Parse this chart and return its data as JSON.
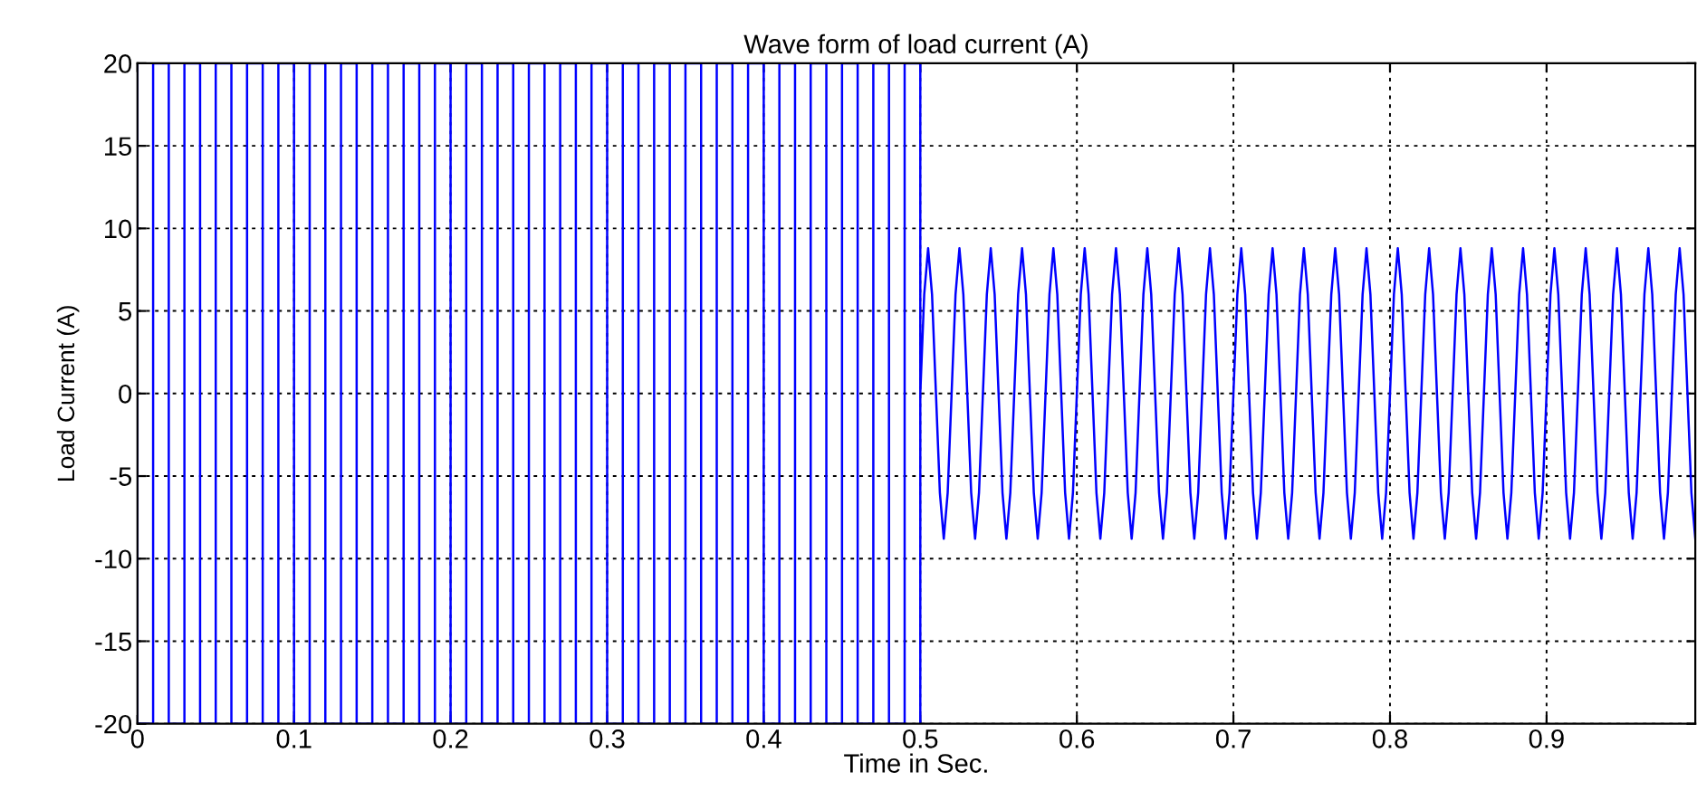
{
  "chart_data": {
    "type": "line",
    "title": "Wave form of load current (A)",
    "xlabel": "Time in Sec.",
    "ylabel": "Load Current (A)",
    "xlim": [
      0,
      0.995
    ],
    "ylim": [
      -20,
      20
    ],
    "xticks": [
      0,
      0.1,
      0.2,
      0.3,
      0.4,
      0.5,
      0.6,
      0.7,
      0.8,
      0.9
    ],
    "yticks": [
      -20,
      -15,
      -10,
      -5,
      0,
      5,
      10,
      15,
      20
    ],
    "grid": true,
    "marker": "none",
    "line_style": "solid",
    "series": [
      {
        "color": "#0000ff",
        "x": [
          0,
          0,
          0.01,
          0.01,
          0.02,
          0.02,
          0.03,
          0.03,
          0.04,
          0.04,
          0.05,
          0.05,
          0.06,
          0.06,
          0.07,
          0.07,
          0.08,
          0.08,
          0.09,
          0.09,
          0.1,
          0.1,
          0.11,
          0.11,
          0.12,
          0.12,
          0.13,
          0.13,
          0.14,
          0.14,
          0.15,
          0.15,
          0.16,
          0.16,
          0.17,
          0.17,
          0.18,
          0.18,
          0.19,
          0.19,
          0.2,
          0.2,
          0.21,
          0.21,
          0.22,
          0.22,
          0.23,
          0.23,
          0.24,
          0.24,
          0.25,
          0.25,
          0.26,
          0.26,
          0.27,
          0.27,
          0.28,
          0.28,
          0.29,
          0.29,
          0.3,
          0.3,
          0.31,
          0.31,
          0.32,
          0.32,
          0.33,
          0.33,
          0.34,
          0.34,
          0.35,
          0.35,
          0.36,
          0.36,
          0.37,
          0.37,
          0.38,
          0.38,
          0.39,
          0.39,
          0.4,
          0.4,
          0.41,
          0.41,
          0.42,
          0.42,
          0.43,
          0.43,
          0.44,
          0.44,
          0.45,
          0.45,
          0.46,
          0.46,
          0.47,
          0.47,
          0.48,
          0.48,
          0.49,
          0.49,
          0.5,
          0.5,
          0.5,
          0.5025,
          0.505,
          0.5075,
          0.51,
          0.5125,
          0.515,
          0.5175,
          0.52,
          0.5225,
          0.525,
          0.5275,
          0.53,
          0.5325,
          0.535,
          0.5375,
          0.54,
          0.5425,
          0.545,
          0.5475,
          0.55,
          0.5525,
          0.555,
          0.5575,
          0.56,
          0.5625,
          0.565,
          0.5675,
          0.57,
          0.5725,
          0.575,
          0.5775,
          0.58,
          0.5825,
          0.585,
          0.5875,
          0.59,
          0.5925,
          0.595,
          0.5975,
          0.6,
          0.6025,
          0.605,
          0.6075,
          0.61,
          0.6125,
          0.615,
          0.6175,
          0.62,
          0.6225,
          0.625,
          0.6275,
          0.63,
          0.6325,
          0.635,
          0.6375,
          0.64,
          0.6425,
          0.645,
          0.6475,
          0.65,
          0.6525,
          0.655,
          0.6575,
          0.66,
          0.6625,
          0.665,
          0.6675,
          0.67,
          0.6725,
          0.675,
          0.6775,
          0.68,
          0.6825,
          0.685,
          0.6875,
          0.69,
          0.6925,
          0.695,
          0.6975,
          0.7,
          0.7025,
          0.705,
          0.7075,
          0.71,
          0.7125,
          0.715,
          0.7175,
          0.72,
          0.7225,
          0.725,
          0.7275,
          0.73,
          0.7325,
          0.735,
          0.7375,
          0.74,
          0.7425,
          0.745,
          0.7475,
          0.75,
          0.7525,
          0.755,
          0.7575,
          0.76,
          0.7625,
          0.765,
          0.7675,
          0.77,
          0.7725,
          0.775,
          0.7775,
          0.78,
          0.7825,
          0.785,
          0.7875,
          0.79,
          0.7925,
          0.795,
          0.7975,
          0.8,
          0.8025,
          0.805,
          0.8075,
          0.81,
          0.8125,
          0.815,
          0.8175,
          0.82,
          0.8225,
          0.825,
          0.8275,
          0.83,
          0.8325,
          0.835,
          0.8375,
          0.84,
          0.8425,
          0.845,
          0.8475,
          0.85,
          0.8525,
          0.855,
          0.8575,
          0.86,
          0.8625,
          0.865,
          0.8675,
          0.87,
          0.8725,
          0.875,
          0.8775,
          0.88,
          0.8825,
          0.885,
          0.8875,
          0.89,
          0.8925,
          0.895,
          0.8975,
          0.9,
          0.9025,
          0.905,
          0.9075,
          0.91,
          0.9125,
          0.915,
          0.9175,
          0.92,
          0.9225,
          0.925,
          0.9275,
          0.93,
          0.9325,
          0.935,
          0.9375,
          0.94,
          0.9425,
          0.945,
          0.9475,
          0.95,
          0.9525,
          0.955,
          0.9575,
          0.96,
          0.9625,
          0.965,
          0.9675,
          0.97,
          0.9725,
          0.975,
          0.9775,
          0.98,
          0.9825,
          0.985,
          0.9875,
          0.99,
          0.9925,
          0.995
        ],
        "values": [
          20,
          -20,
          -20,
          20,
          20,
          -20,
          -20,
          20,
          20,
          -20,
          -20,
          20,
          20,
          -20,
          -20,
          20,
          20,
          -20,
          -20,
          20,
          20,
          -20,
          -20,
          20,
          20,
          -20,
          -20,
          20,
          20,
          -20,
          -20,
          20,
          20,
          -20,
          -20,
          20,
          20,
          -20,
          -20,
          20,
          20,
          -20,
          -20,
          20,
          20,
          -20,
          -20,
          20,
          20,
          -20,
          -20,
          20,
          20,
          -20,
          -20,
          20,
          20,
          -20,
          -20,
          20,
          20,
          -20,
          -20,
          20,
          20,
          -20,
          -20,
          20,
          20,
          -20,
          -20,
          20,
          20,
          -20,
          -20,
          20,
          20,
          -20,
          -20,
          20,
          20,
          -20,
          -20,
          20,
          20,
          -20,
          -20,
          20,
          20,
          -20,
          -20,
          20,
          20,
          -20,
          -20,
          20,
          20,
          -20,
          -20,
          20,
          20,
          -20,
          0,
          6,
          8.8,
          6,
          0,
          -6,
          -8.8,
          -6,
          0,
          6,
          8.8,
          6,
          0,
          -6,
          -8.8,
          -6,
          0,
          6,
          8.8,
          6,
          0,
          -6,
          -8.8,
          -6,
          0,
          6,
          8.8,
          6,
          0,
          -6,
          -8.8,
          -6,
          0,
          6,
          8.8,
          6,
          0,
          -6,
          -8.8,
          -6,
          0,
          6,
          8.8,
          6,
          0,
          -6,
          -8.8,
          -6,
          0,
          6,
          8.8,
          6,
          0,
          -6,
          -8.8,
          -6,
          0,
          6,
          8.8,
          6,
          0,
          -6,
          -8.8,
          -6,
          0,
          6,
          8.8,
          6,
          0,
          -6,
          -8.8,
          -6,
          0,
          6,
          8.8,
          6,
          0,
          -6,
          -8.8,
          -6,
          0,
          6,
          8.8,
          6,
          0,
          -6,
          -8.8,
          -6,
          0,
          6,
          8.8,
          6,
          0,
          -6,
          -8.8,
          -6,
          0,
          6,
          8.8,
          6,
          0,
          -6,
          -8.8,
          -6,
          0,
          6,
          8.8,
          6,
          0,
          -6,
          -8.8,
          -6,
          0,
          6,
          8.8,
          6,
          0,
          -6,
          -8.8,
          -6,
          0,
          6,
          8.8,
          6,
          0,
          -6,
          -8.8,
          -6,
          0,
          6,
          8.8,
          6,
          0,
          -6,
          -8.8,
          -6,
          0,
          6,
          8.8,
          6,
          0,
          -6,
          -8.8,
          -6,
          0,
          6,
          8.8,
          6,
          0,
          -6,
          -8.8,
          -6,
          0,
          6,
          8.8,
          6,
          0,
          -6,
          -8.8,
          -6,
          0,
          6,
          8.8,
          6,
          0,
          -6,
          -8.8,
          -6,
          0,
          6,
          8.8,
          6,
          0,
          -6,
          -8.8,
          -6,
          0,
          6,
          8.8,
          6,
          0,
          -6,
          -8.8,
          -6,
          0,
          6,
          8.8,
          6,
          0,
          -6,
          -8.8,
          -6,
          0,
          6,
          8.8,
          6,
          0,
          -6,
          -8.8
        ]
      }
    ]
  }
}
